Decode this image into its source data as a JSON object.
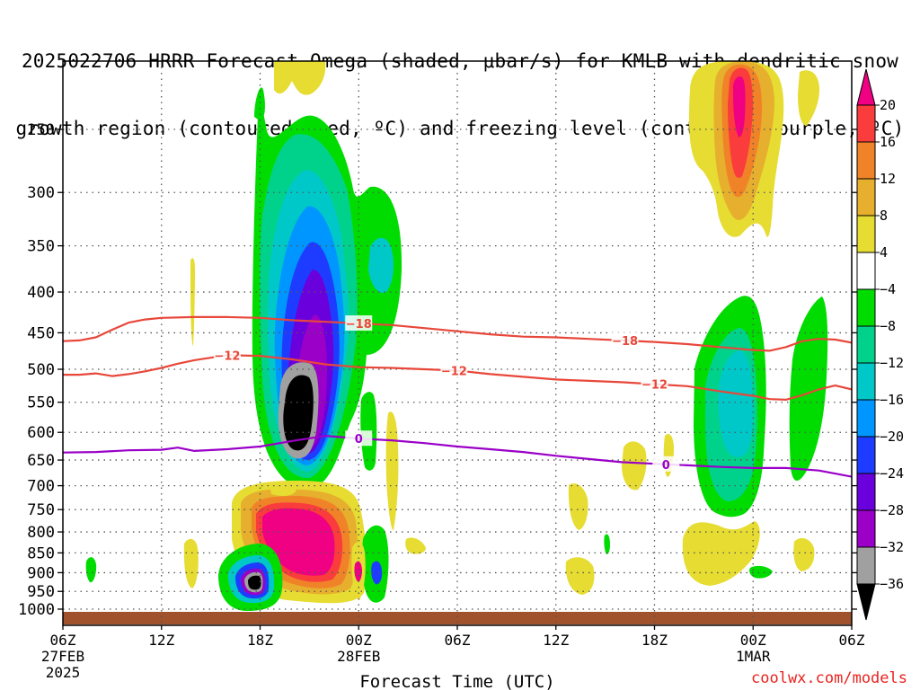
{
  "title": {
    "line1": "2025022706 HRRR Forecast Omega (shaded, μbar/s) for KMLB with dendritic snow",
    "line2": "growth region (contoured, red, ºC) and freezing level (contoured, purple, ºC)"
  },
  "credit": "coolwx.com/models",
  "chart_data": {
    "type": "time-height contour",
    "xlabel": "Forecast Time (UTC)",
    "x_ticks": [
      {
        "hour": 0,
        "label": "06Z",
        "sub1": "27FEB",
        "sub2": "2025"
      },
      {
        "hour": 6,
        "label": "12Z",
        "sub1": "",
        "sub2": ""
      },
      {
        "hour": 12,
        "label": "18Z",
        "sub1": "",
        "sub2": ""
      },
      {
        "hour": 18,
        "label": "00Z",
        "sub1": "28FEB",
        "sub2": ""
      },
      {
        "hour": 24,
        "label": "06Z",
        "sub1": "",
        "sub2": ""
      },
      {
        "hour": 30,
        "label": "12Z",
        "sub1": "",
        "sub2": ""
      },
      {
        "hour": 36,
        "label": "18Z",
        "sub1": "",
        "sub2": ""
      },
      {
        "hour": 42,
        "label": "00Z",
        "sub1": "1MAR",
        "sub2": ""
      },
      {
        "hour": 48,
        "label": "06Z",
        "sub1": "",
        "sub2": ""
      }
    ],
    "xlim": [
      0,
      48
    ],
    "y_ticks": [
      250,
      300,
      350,
      400,
      450,
      500,
      550,
      600,
      650,
      700,
      750,
      800,
      850,
      900,
      950,
      1000
    ],
    "ylim": [
      200,
      1020
    ],
    "colorbar": {
      "levels": [
        -36,
        -32,
        -28,
        -24,
        -20,
        -16,
        -12,
        -8,
        -4,
        4,
        8,
        12,
        16,
        20
      ],
      "labels": [
        "20",
        "16",
        "12",
        "8",
        "4",
        "−4",
        "−8",
        "−12",
        "−16",
        "−20",
        "−24",
        "−28",
        "−32",
        "−36"
      ],
      "colors": {
        "min_arrow": "#000000",
        "-36": "#a0a0a0",
        "-32": "#9a00c8",
        "-28": "#6a00dc",
        "-24": "#1e3cff",
        "-20": "#0096ff",
        "-16": "#00c8c8",
        "-12": "#00d28c",
        "-8": "#00dc00",
        "neutral": "#ffffff",
        "4": "#e6dc32",
        "8": "#e6af2d",
        "12": "#f08228",
        "16": "#fa3c3c",
        "max_arrow": "#f00082"
      }
    },
    "contours": [
      {
        "name": "-18",
        "color": "#e8473a",
        "label": "−18",
        "points": [
          [
            0,
            461
          ],
          [
            1,
            460
          ],
          [
            2,
            456
          ],
          [
            3,
            446
          ],
          [
            4,
            437
          ],
          [
            5,
            433
          ],
          [
            6,
            431
          ],
          [
            8,
            430
          ],
          [
            10,
            430
          ],
          [
            12,
            431
          ],
          [
            14,
            434
          ],
          [
            16,
            436
          ],
          [
            18,
            438
          ],
          [
            20,
            440
          ],
          [
            22,
            444
          ],
          [
            24,
            448
          ],
          [
            26,
            452
          ],
          [
            28,
            455
          ],
          [
            30,
            456
          ],
          [
            32,
            458
          ],
          [
            34,
            460
          ],
          [
            36,
            462
          ],
          [
            38,
            465
          ],
          [
            40,
            469
          ],
          [
            42,
            473
          ],
          [
            43,
            474
          ],
          [
            44,
            469
          ],
          [
            45,
            461
          ],
          [
            46,
            458
          ],
          [
            47,
            459
          ],
          [
            48,
            463
          ]
        ],
        "label_hours": [
          18.0,
          34.2
        ]
      },
      {
        "name": "-12",
        "color": "#e8473a",
        "label": "−12",
        "points": [
          [
            0,
            508
          ],
          [
            1,
            508
          ],
          [
            2,
            506
          ],
          [
            3,
            510
          ],
          [
            4,
            507
          ],
          [
            5,
            503
          ],
          [
            6,
            498
          ],
          [
            7,
            492
          ],
          [
            8,
            487
          ],
          [
            10,
            480
          ],
          [
            12,
            481
          ],
          [
            14,
            486
          ],
          [
            16,
            493
          ],
          [
            18,
            497
          ],
          [
            20,
            498
          ],
          [
            22,
            500
          ],
          [
            24,
            502
          ],
          [
            26,
            507
          ],
          [
            28,
            511
          ],
          [
            30,
            515
          ],
          [
            32,
            517
          ],
          [
            34,
            519
          ],
          [
            36,
            522
          ],
          [
            38,
            525
          ],
          [
            40,
            533
          ],
          [
            42,
            540
          ],
          [
            43,
            545
          ],
          [
            44,
            546
          ],
          [
            45,
            539
          ],
          [
            46,
            530
          ],
          [
            47,
            524
          ],
          [
            48,
            530
          ]
        ],
        "label_hours": [
          10.0,
          23.8,
          36.0
        ]
      },
      {
        "name": "0",
        "color": "#9a00c8",
        "label": "0",
        "points": [
          [
            0,
            636
          ],
          [
            2,
            635
          ],
          [
            4,
            632
          ],
          [
            6,
            631
          ],
          [
            7,
            627
          ],
          [
            8,
            633
          ],
          [
            10,
            630
          ],
          [
            12,
            625
          ],
          [
            14,
            615
          ],
          [
            16,
            606
          ],
          [
            18,
            611
          ],
          [
            20,
            614
          ],
          [
            22,
            619
          ],
          [
            24,
            625
          ],
          [
            26,
            630
          ],
          [
            28,
            635
          ],
          [
            30,
            642
          ],
          [
            32,
            648
          ],
          [
            34,
            654
          ],
          [
            36,
            657
          ],
          [
            38,
            660
          ],
          [
            40,
            663
          ],
          [
            42,
            665
          ],
          [
            44,
            665
          ],
          [
            46,
            670
          ],
          [
            48,
            682
          ]
        ],
        "label_hours": [
          18.0,
          36.7
        ]
      }
    ]
  }
}
